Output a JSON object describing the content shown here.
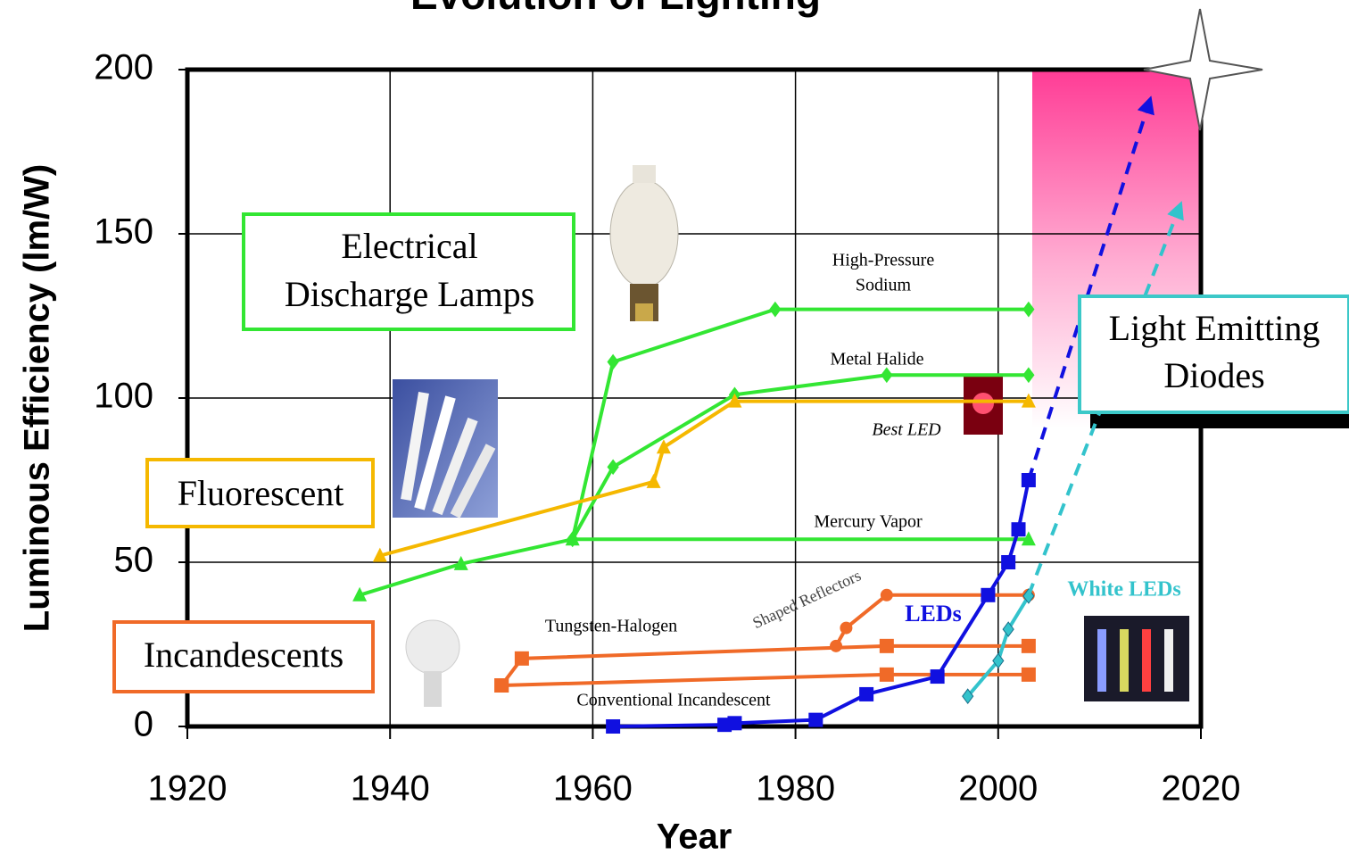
{
  "chart_data": {
    "type": "line",
    "title": "Evolution of Lighting",
    "xlabel": "Year",
    "ylabel": "Luminous Efficiency (lm/W)",
    "xlim": [
      1920,
      2020
    ],
    "ylim": [
      0,
      200
    ],
    "xticks": [
      1920,
      1940,
      1960,
      1980,
      2000,
      2020
    ],
    "yticks": [
      0,
      50,
      100,
      150,
      200
    ],
    "grid": true,
    "series": [
      {
        "name": "Mercury Vapor",
        "color": "#33e633",
        "marker": "triangle",
        "x": [
          1937,
          1947,
          1958,
          2003
        ],
        "values": [
          40,
          49.5,
          57,
          57
        ]
      },
      {
        "name": "High-Pressure Sodium",
        "color": "#33e633",
        "marker": "diamond",
        "x": [
          1958,
          1962,
          1978,
          2003
        ],
        "values": [
          57,
          111,
          127,
          127
        ]
      },
      {
        "name": "Metal Halide",
        "color": "#33e633",
        "marker": "diamond",
        "x": [
          1958,
          1962,
          1974,
          1989,
          2003
        ],
        "values": [
          57,
          79,
          101,
          107,
          107
        ]
      },
      {
        "name": "Fluorescent",
        "color": "#f5b800",
        "marker": "triangle",
        "x": [
          1939,
          1966,
          1967,
          1974,
          2003
        ],
        "values": [
          52,
          74.5,
          85,
          99,
          99
        ]
      },
      {
        "name": "Tungsten-Halogen",
        "color": "#f06a28",
        "marker": "square",
        "x": [
          1951,
          1953,
          1989,
          2003
        ],
        "values": [
          12.5,
          20.7,
          24.5,
          24.5
        ]
      },
      {
        "name": "Conventional Incandescent",
        "color": "#f06a28",
        "marker": "square",
        "x": [
          1951,
          1989,
          2003
        ],
        "values": [
          12.5,
          15.8,
          15.8
        ]
      },
      {
        "name": "Shaped Reflectors",
        "color": "#f06a28",
        "marker": "circle",
        "x": [
          1984,
          1985,
          1989,
          2003
        ],
        "values": [
          24.5,
          30,
          40,
          40
        ]
      },
      {
        "name": "LEDs",
        "color": "#1010e0",
        "marker": "square",
        "x": [
          1962,
          1973,
          1974,
          1982,
          1987,
          1994,
          1999,
          2001,
          2002,
          2003
        ],
        "values": [
          0,
          0.5,
          1,
          2,
          9.8,
          15.2,
          40,
          50,
          60,
          75
        ]
      },
      {
        "name": "White LEDs",
        "color": "#33c3cc",
        "marker": "diamond",
        "x": [
          1997,
          2000,
          2001,
          2003
        ],
        "values": [
          9.2,
          20,
          29.6,
          39.7
        ]
      },
      {
        "color": "#1010e0",
        "dashed": true,
        "x": [
          2003,
          2015
        ],
        "values": [
          75,
          191
        ]
      },
      {
        "color": "#33c3cc",
        "dashed": true,
        "x": [
          2003,
          2018
        ],
        "values": [
          40,
          159
        ]
      }
    ],
    "annotations": [
      [
        "Electrical",
        "Discharge Lamps"
      ],
      [
        "Fluorescent"
      ],
      [
        "Incandescents"
      ],
      [
        "Light Emitting",
        "Diodes"
      ],
      [
        "High-Pressure",
        "Sodium"
      ],
      [
        "Metal Halide"
      ],
      [
        "Best LED"
      ],
      [
        "Mercury Vapor"
      ],
      [
        "Tungsten-Halogen"
      ],
      [
        "Shaped Reflectors"
      ],
      [
        "Conventional Incandescent"
      ],
      [
        "LEDs"
      ],
      [
        "White LEDs"
      ]
    ]
  }
}
